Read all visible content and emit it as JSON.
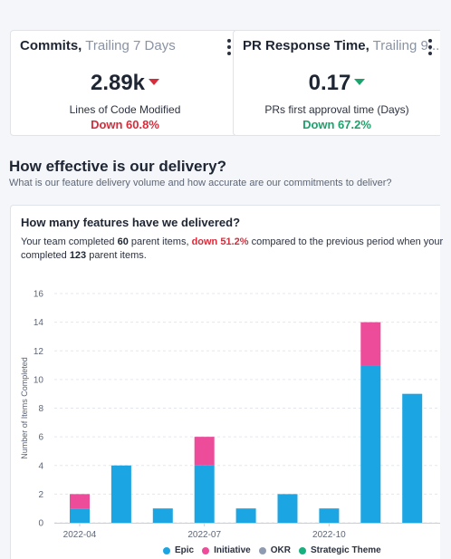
{
  "metrics": [
    {
      "title": "Commits,",
      "subtitle": " Trailing 7 Days",
      "value": "2.89k",
      "trend": "down",
      "label": "Lines of Code Modified",
      "change": "Down 60.8%",
      "change_color": "#d72c3b"
    },
    {
      "title": "PR Response Time,",
      "subtitle": " Trailing 9...",
      "value": "0.17",
      "trend": "down",
      "label": "PRs first approval time (Days)",
      "change": "Down 67.2%",
      "change_color": "#1aa36b"
    }
  ],
  "section": {
    "title": "How effective is our delivery?",
    "subtitle": "What is our feature delivery volume and how accurate are our commitments to deliver?"
  },
  "features": {
    "title": "How many features have we delivered?",
    "desc_1": "Your team completed ",
    "count_current": "60",
    "desc_2": " parent items, ",
    "change": "down 51.2%",
    "desc_3": " compared to the previous period when your",
    "desc_4": "completed ",
    "count_previous": "123",
    "desc_5": " parent items."
  },
  "chart_data": {
    "type": "bar",
    "stacked": true,
    "ylabel": "Number of Items Completed",
    "ylim": [
      0,
      16
    ],
    "yticks": [
      0,
      2,
      4,
      6,
      8,
      10,
      12,
      14,
      16
    ],
    "xtick_labels": [
      "2022-04",
      "2022-07",
      "2022-10"
    ],
    "grid": true,
    "legend_position": "bottom",
    "series": [
      {
        "name": "Epic",
        "color": "#1ba6e3",
        "values": [
          1,
          4,
          1,
          4,
          1,
          2,
          1,
          11,
          9
        ]
      },
      {
        "name": "Initiative",
        "color": "#ec4c9a",
        "values": [
          1,
          0,
          0,
          2,
          0,
          0,
          0,
          3,
          0
        ]
      },
      {
        "name": "OKR",
        "color": "#8f9bb0",
        "values": [
          0,
          0,
          0,
          0,
          0,
          0,
          0,
          0,
          0
        ]
      },
      {
        "name": "Strategic Theme",
        "color": "#19b07f",
        "values": [
          0,
          0,
          0,
          0,
          0,
          0,
          0,
          0,
          0
        ]
      }
    ]
  }
}
